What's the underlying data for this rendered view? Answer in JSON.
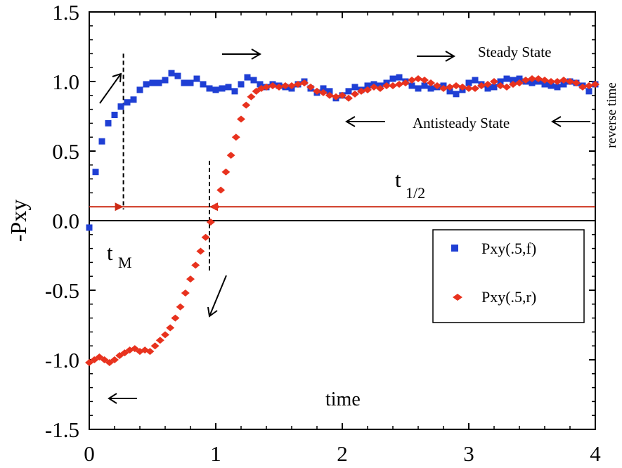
{
  "chart_data": {
    "type": "scatter",
    "xlabel": "time",
    "ylabel": "-Pxy",
    "right_label": "reverse time",
    "xlim": [
      0,
      4
    ],
    "ylim": [
      -1.5,
      1.5
    ],
    "x_ticks": [
      "0",
      "1",
      "2",
      "3",
      "4"
    ],
    "y_ticks": [
      "1.5",
      "1.0",
      "0.5",
      "0.0",
      "-0.5",
      "-1.0",
      "-1.5"
    ],
    "grid": false,
    "legend_position": "bottom-right",
    "annotations": {
      "steady": "Steady State",
      "antisteady": "Antisteady State",
      "t_half_main": "t",
      "t_half_sub": "1/2",
      "t_m_main": "t",
      "t_m_sub": "M",
      "t_half_level": 0.1,
      "t_m_x": 0.27,
      "t_half_x": 0.95
    },
    "colors": {
      "forward": "#1f3fd4",
      "reverse": "#e8321e",
      "hline": "#cc2a14"
    },
    "series": [
      {
        "name": "Pxy(.5,f)",
        "marker": "square",
        "x": [
          0.0,
          0.05,
          0.1,
          0.15,
          0.2,
          0.25,
          0.3,
          0.35,
          0.4,
          0.45,
          0.5,
          0.55,
          0.6,
          0.65,
          0.7,
          0.75,
          0.8,
          0.85,
          0.9,
          0.95,
          1.0,
          1.05,
          1.1,
          1.15,
          1.2,
          1.25,
          1.3,
          1.35,
          1.4,
          1.45,
          1.5,
          1.55,
          1.6,
          1.65,
          1.7,
          1.75,
          1.8,
          1.85,
          1.9,
          1.95,
          2.0,
          2.05,
          2.1,
          2.15,
          2.2,
          2.25,
          2.3,
          2.35,
          2.4,
          2.45,
          2.5,
          2.55,
          2.6,
          2.65,
          2.7,
          2.75,
          2.8,
          2.85,
          2.9,
          2.95,
          3.0,
          3.05,
          3.1,
          3.15,
          3.2,
          3.25,
          3.3,
          3.35,
          3.4,
          3.45,
          3.5,
          3.55,
          3.6,
          3.65,
          3.7,
          3.75,
          3.8,
          3.85,
          3.9,
          3.95,
          4.0
        ],
        "values": [
          -0.05,
          0.35,
          0.57,
          0.7,
          0.76,
          0.82,
          0.85,
          0.87,
          0.94,
          0.98,
          0.99,
          0.99,
          1.01,
          1.06,
          1.04,
          0.99,
          0.99,
          1.02,
          0.98,
          0.95,
          0.94,
          0.95,
          0.96,
          0.93,
          0.98,
          1.03,
          1.01,
          0.98,
          0.96,
          0.98,
          0.97,
          0.96,
          0.95,
          0.98,
          1.0,
          0.95,
          0.92,
          0.95,
          0.93,
          0.88,
          0.9,
          0.93,
          0.96,
          0.94,
          0.97,
          0.98,
          0.97,
          0.99,
          1.02,
          1.03,
          1.0,
          0.97,
          0.95,
          0.97,
          0.95,
          0.96,
          0.97,
          0.93,
          0.91,
          0.94,
          0.99,
          1.01,
          0.98,
          0.95,
          0.96,
          1.0,
          1.02,
          1.01,
          1.02,
          1.0,
          0.99,
          1.0,
          0.98,
          0.97,
          0.96,
          0.98,
          1.0,
          0.99,
          0.97,
          0.93,
          0.98
        ]
      },
      {
        "name": "Pxy(.5,r)",
        "marker": "diamond",
        "x": [
          0.0,
          0.04,
          0.08,
          0.12,
          0.16,
          0.2,
          0.24,
          0.28,
          0.32,
          0.36,
          0.4,
          0.44,
          0.48,
          0.52,
          0.56,
          0.6,
          0.64,
          0.68,
          0.72,
          0.76,
          0.8,
          0.84,
          0.88,
          0.92,
          0.96,
          1.0,
          1.04,
          1.08,
          1.12,
          1.16,
          1.2,
          1.24,
          1.28,
          1.32,
          1.36,
          1.4,
          1.45,
          1.5,
          1.55,
          1.6,
          1.65,
          1.7,
          1.75,
          1.8,
          1.85,
          1.9,
          1.95,
          2.0,
          2.05,
          2.1,
          2.15,
          2.2,
          2.25,
          2.3,
          2.35,
          2.4,
          2.45,
          2.5,
          2.55,
          2.6,
          2.65,
          2.7,
          2.75,
          2.8,
          2.85,
          2.9,
          2.95,
          3.0,
          3.05,
          3.1,
          3.15,
          3.2,
          3.25,
          3.3,
          3.35,
          3.4,
          3.45,
          3.5,
          3.55,
          3.6,
          3.65,
          3.7,
          3.75,
          3.8,
          3.85,
          3.9,
          3.95,
          4.0
        ],
        "values": [
          -1.02,
          -1.0,
          -0.98,
          -1.0,
          -1.02,
          -1.0,
          -0.97,
          -0.95,
          -0.93,
          -0.92,
          -0.94,
          -0.93,
          -0.94,
          -0.9,
          -0.86,
          -0.82,
          -0.77,
          -0.7,
          -0.62,
          -0.52,
          -0.42,
          -0.32,
          -0.22,
          -0.12,
          -0.01,
          0.1,
          0.22,
          0.35,
          0.47,
          0.6,
          0.73,
          0.83,
          0.89,
          0.93,
          0.95,
          0.96,
          0.97,
          0.96,
          0.97,
          0.97,
          0.98,
          0.99,
          0.96,
          0.93,
          0.92,
          0.9,
          0.89,
          0.9,
          0.88,
          0.91,
          0.93,
          0.94,
          0.96,
          0.95,
          0.97,
          0.97,
          0.98,
          0.99,
          1.01,
          1.02,
          1.01,
          0.99,
          0.97,
          0.95,
          0.96,
          0.97,
          0.96,
          0.95,
          0.95,
          0.97,
          0.98,
          1.0,
          0.97,
          0.96,
          0.98,
          0.99,
          1.01,
          1.02,
          1.02,
          1.01,
          1.0,
          1.0,
          1.01,
          1.0,
          0.99,
          0.96,
          0.97,
          0.98
        ]
      }
    ]
  }
}
